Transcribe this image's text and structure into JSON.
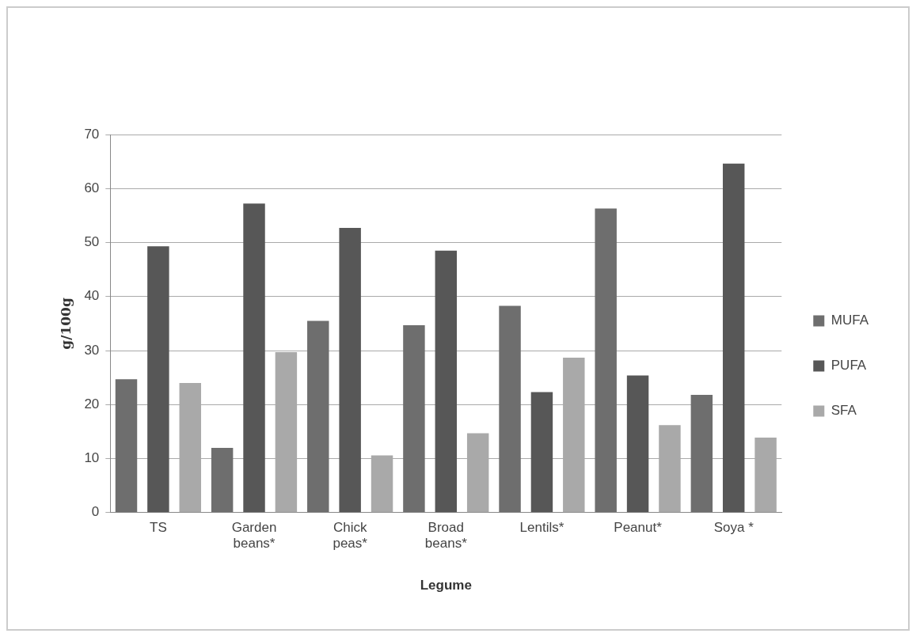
{
  "chart_data": {
    "type": "bar",
    "xlabel": "Legume",
    "ylabel": "g/100g",
    "categories": [
      "TS",
      "Garden beans*",
      "Chick peas*",
      "Broad beans*",
      "Lentils*",
      "Peanut*",
      "Soya *"
    ],
    "series": [
      {
        "name": "MUFA",
        "color": "#6e6e6e",
        "values": [
          24.7,
          12,
          35.5,
          34.7,
          38.3,
          56.3,
          21.8
        ]
      },
      {
        "name": "PUFA",
        "color": "#575757",
        "values": [
          49.3,
          57.2,
          52.7,
          48.5,
          22.3,
          25.4,
          64.6
        ]
      },
      {
        "name": "SFA",
        "color": "#a9a9a9",
        "values": [
          24,
          29.7,
          10.6,
          14.7,
          28.7,
          16.2,
          13.9
        ]
      }
    ],
    "ylim": [
      0,
      70
    ],
    "yticks": [
      0,
      10,
      20,
      30,
      40,
      50,
      60,
      70
    ],
    "grid": "y",
    "legend": "right"
  }
}
